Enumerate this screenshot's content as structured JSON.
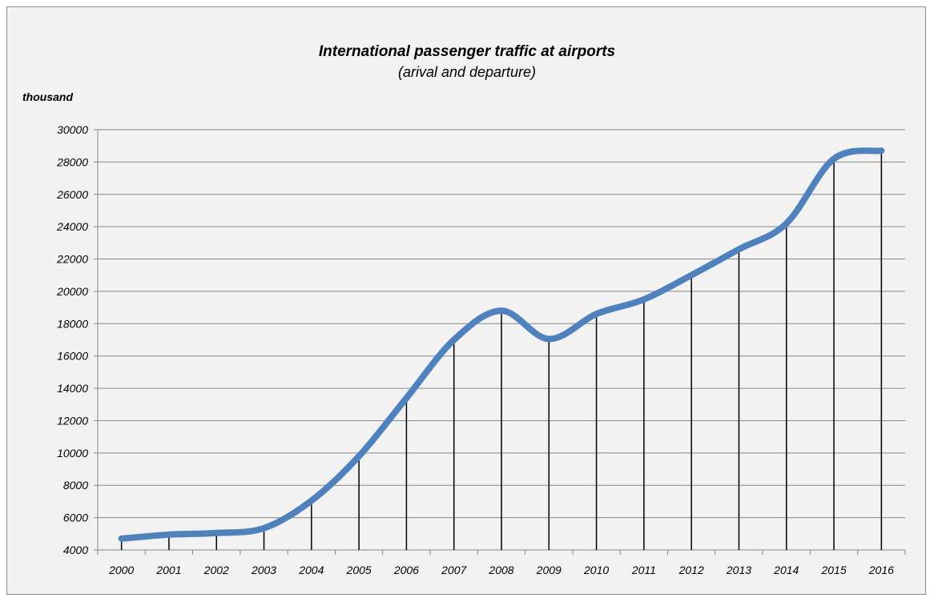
{
  "chart_data": {
    "type": "line",
    "title": "International passenger traffic at airports",
    "subtitle": "(arival and departure)",
    "ylabel": "thousand",
    "xlabel": "",
    "categories": [
      "2000",
      "2001",
      "2002",
      "2003",
      "2004",
      "2005",
      "2006",
      "2007",
      "2008",
      "2009",
      "2010",
      "2011",
      "2012",
      "2013",
      "2014",
      "2015",
      "2016"
    ],
    "series": [
      {
        "values": [
          4700,
          4950,
          5050,
          5350,
          7050,
          9800,
          13400,
          17000,
          18800,
          17050,
          18600,
          19500,
          21000,
          22600,
          24200,
          28200,
          28700
        ]
      }
    ],
    "ylim": [
      4000,
      30000
    ],
    "yticks": [
      4000,
      6000,
      8000,
      10000,
      12000,
      14000,
      16000,
      18000,
      20000,
      22000,
      24000,
      26000,
      28000,
      30000
    ],
    "grid": true,
    "drop_lines": true,
    "legend": "none",
    "colors": {
      "line": "#4f81bd",
      "grid": "#868686",
      "background": "#f2f2f2"
    }
  }
}
